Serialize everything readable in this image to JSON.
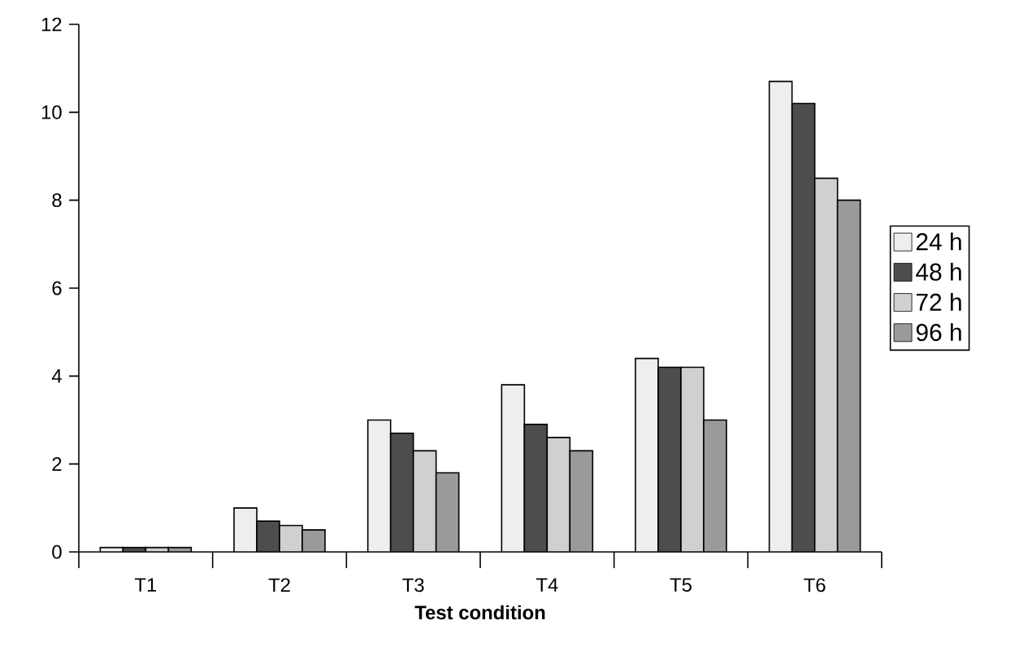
{
  "chart_data": {
    "type": "bar",
    "xlabel": "Test condition",
    "categories": [
      "T1",
      "T2",
      "T3",
      "T4",
      "T5",
      "T6"
    ],
    "series": [
      {
        "name": "24 h",
        "color": "#eeeeee",
        "values": [
          0.1,
          1.0,
          3.0,
          3.8,
          4.4,
          10.7
        ]
      },
      {
        "name": "48 h",
        "color": "#4d4d4d",
        "values": [
          0.1,
          0.7,
          2.7,
          2.9,
          4.2,
          10.2
        ]
      },
      {
        "name": "72 h",
        "color": "#d0d0d0",
        "values": [
          0.1,
          0.6,
          2.3,
          2.6,
          4.2,
          8.5
        ]
      },
      {
        "name": "96 h",
        "color": "#9a9a9a",
        "values": [
          0.1,
          0.5,
          1.8,
          2.3,
          3.0,
          8.0
        ]
      }
    ],
    "ylim": [
      0,
      12
    ],
    "yticks": [
      0,
      2,
      4,
      6,
      8,
      10,
      12
    ],
    "legend": "right"
  }
}
